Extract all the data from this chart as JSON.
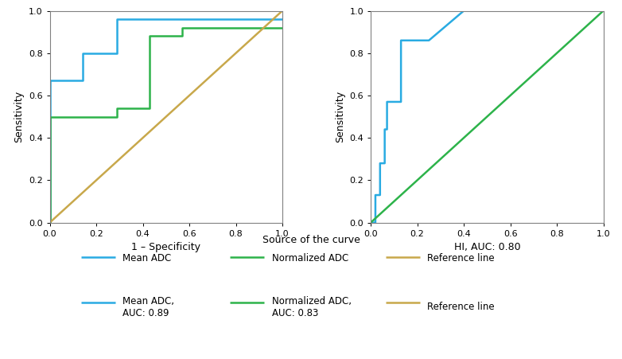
{
  "left_plot": {
    "mean_adc": {
      "x": [
        0,
        0,
        0.14,
        0.14,
        0.29,
        0.29,
        1.0
      ],
      "y": [
        0,
        0.67,
        0.67,
        0.8,
        0.8,
        0.96,
        0.96
      ],
      "color": "#29ABE2",
      "label": "Mean ADC"
    },
    "normalized_adc": {
      "x": [
        0,
        0,
        0.14,
        0.29,
        0.29,
        0.43,
        0.43,
        0.57,
        0.57,
        1.0
      ],
      "y": [
        0,
        0.5,
        0.5,
        0.5,
        0.54,
        0.54,
        0.88,
        0.88,
        0.92,
        0.92
      ],
      "color": "#2DB34A",
      "label": "Normalized ADC"
    },
    "reference": {
      "x": [
        0,
        1.0
      ],
      "y": [
        0,
        1.0
      ],
      "color": "#C8A84B",
      "label": "Reference line"
    },
    "xlabel": "1 – Specificity",
    "ylabel": "Sensitivity",
    "xlim": [
      0,
      1.0
    ],
    "ylim": [
      0,
      1.0
    ],
    "mean_adc_auc": "0.89",
    "normalized_adc_auc": "0.83"
  },
  "right_plot": {
    "hi": {
      "x": [
        0,
        0.02,
        0.02,
        0.04,
        0.04,
        0.06,
        0.06,
        0.07,
        0.07,
        0.13,
        0.13,
        0.25,
        0.4,
        1.0
      ],
      "y": [
        0,
        0,
        0.13,
        0.13,
        0.28,
        0.28,
        0.44,
        0.44,
        0.57,
        0.57,
        0.86,
        0.86,
        1.0,
        1.0
      ],
      "color": "#29ABE2",
      "label": "HI, AUC: 0.80"
    },
    "reference": {
      "x": [
        0,
        1.0
      ],
      "y": [
        0,
        1.0
      ],
      "color": "#2DB34A",
      "label": "Reference line"
    },
    "xlabel": "HI, AUC: 0.80",
    "ylabel": "Sensitivity",
    "xlim": [
      0,
      1.0
    ],
    "ylim": [
      0,
      1.0
    ]
  },
  "legend": {
    "title": "Source of the curve",
    "entries_row1": [
      "Mean ADC",
      "Normalized ADC",
      "Reference line"
    ],
    "entries_row2": [
      "Mean ADC,\nAUC: 0.89",
      "Normalized ADC,\nAUC: 0.83",
      "Reference line"
    ],
    "colors": [
      "#29ABE2",
      "#2DB34A",
      "#C8A84B"
    ]
  },
  "line_width": 1.8
}
